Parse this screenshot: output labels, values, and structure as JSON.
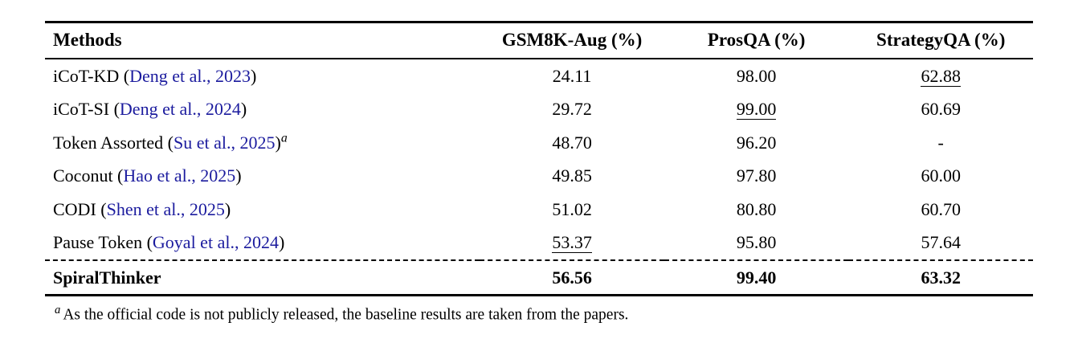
{
  "colors": {
    "citation_link": "#1b1b9e",
    "text": "#000000",
    "background": "#ffffff"
  },
  "table": {
    "headers": [
      "Methods",
      "GSM8K-Aug (%)",
      "ProsQA (%)",
      "StrategyQA (%)"
    ],
    "rows": [
      {
        "method": {
          "prefix": "iCoT-KD (",
          "citation": "Deng et al., 2023",
          "suffix": ")",
          "sup": ""
        },
        "values": [
          "24.11",
          "98.00",
          "62.88"
        ]
      },
      {
        "method": {
          "prefix": "iCoT-SI (",
          "citation": "Deng et al., 2024",
          "suffix": ")",
          "sup": ""
        },
        "values": [
          "29.72",
          "99.00",
          "60.69"
        ]
      },
      {
        "method": {
          "prefix": "Token Assorted (",
          "citation": "Su et al., 2025",
          "suffix": ")",
          "sup": "a"
        },
        "values": [
          "48.70",
          "96.20",
          "-"
        ]
      },
      {
        "method": {
          "prefix": "Coconut (",
          "citation": "Hao et al., 2025",
          "suffix": ")",
          "sup": ""
        },
        "values": [
          "49.85",
          "97.80",
          "60.00"
        ]
      },
      {
        "method": {
          "prefix": "CODI (",
          "citation": "Shen et al., 2025",
          "suffix": ")",
          "sup": ""
        },
        "values": [
          "51.02",
          "80.80",
          "60.70"
        ]
      },
      {
        "method": {
          "prefix": "Pause Token (",
          "citation": "Goyal et al., 2024",
          "suffix": ")",
          "sup": ""
        },
        "values": [
          "53.37",
          "95.80",
          "57.64"
        ]
      }
    ],
    "final_row": {
      "method": "SpiralThinker",
      "values": [
        "56.56",
        "99.40",
        "63.32"
      ]
    }
  },
  "footnote": {
    "marker": "a",
    "text": "As the official code is not publicly released, the baseline results are taken from the papers."
  },
  "chart_data": {
    "type": "table",
    "title": "",
    "columns": [
      "Methods",
      "GSM8K-Aug (%)",
      "ProsQA (%)",
      "StrategyQA (%)"
    ],
    "rows": [
      [
        "iCoT-KD (Deng et al., 2023)",
        24.11,
        98.0,
        62.88
      ],
      [
        "iCoT-SI (Deng et al., 2024)",
        29.72,
        99.0,
        60.69
      ],
      [
        "Token Assorted (Su et al., 2025)a",
        48.7,
        96.2,
        null
      ],
      [
        "Coconut (Hao et al., 2025)",
        49.85,
        97.8,
        60.0
      ],
      [
        "CODI (Shen et al., 2025)",
        51.02,
        80.8,
        60.7
      ],
      [
        "Pause Token (Goyal et al., 2024)",
        53.37,
        95.8,
        57.64
      ],
      [
        "SpiralThinker",
        56.56,
        99.4,
        63.32
      ]
    ]
  }
}
